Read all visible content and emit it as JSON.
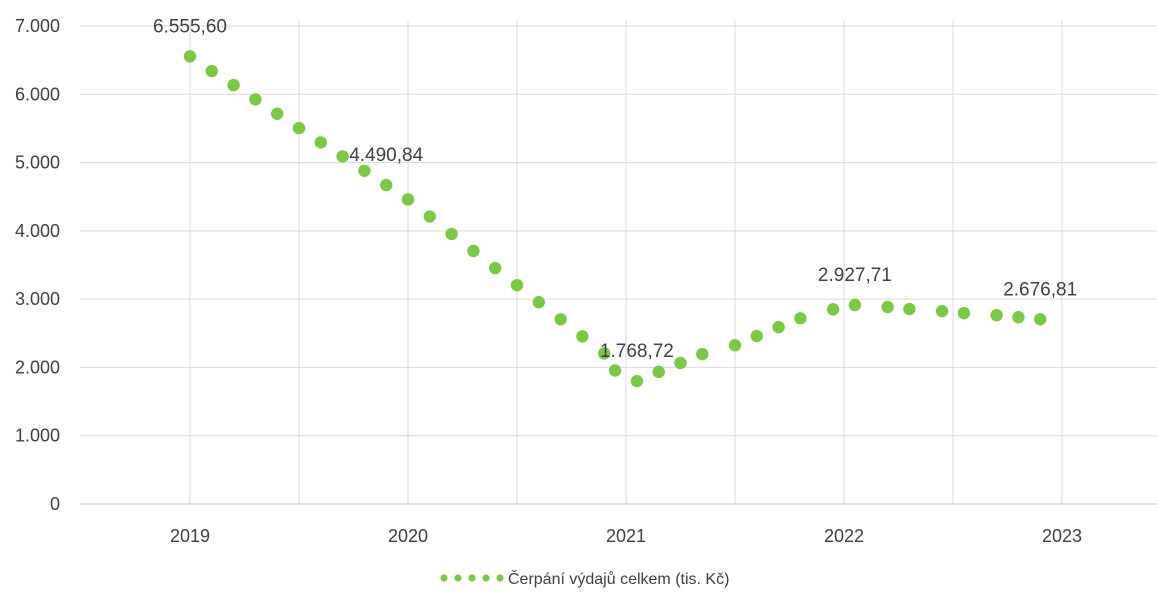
{
  "chart_data": {
    "type": "scatter",
    "title": "",
    "xlabel": "",
    "ylabel": "",
    "ylim": [
      0,
      7000
    ],
    "y_ticks": [
      {
        "value": 0,
        "label": "0"
      },
      {
        "value": 1000,
        "label": "1.000"
      },
      {
        "value": 2000,
        "label": "2.000"
      },
      {
        "value": 3000,
        "label": "3.000"
      },
      {
        "value": 4000,
        "label": "4.000"
      },
      {
        "value": 5000,
        "label": "5.000"
      },
      {
        "value": 6000,
        "label": "6.000"
      },
      {
        "value": 7000,
        "label": "7.000"
      }
    ],
    "x_ticks": [
      {
        "value": 2019,
        "label": "2019"
      },
      {
        "value": 2020,
        "label": "2020"
      },
      {
        "value": 2021,
        "label": "2021"
      },
      {
        "value": 2022,
        "label": "2022"
      },
      {
        "value": 2023,
        "label": "2023"
      }
    ],
    "xlim": [
      2018.5,
      2023.5
    ],
    "grid": {
      "horizontal": true,
      "vertical": true,
      "vertical_step": 0.5
    },
    "legend_position": "bottom-center",
    "series": [
      {
        "name": "Čerpání výdajů celkem (tis. Kč)",
        "color": "#7ac943",
        "points": [
          {
            "x": 2019.0,
            "y": 6555.6,
            "label": "6.555,60"
          },
          {
            "x": 2019.1,
            "y": 6340
          },
          {
            "x": 2019.2,
            "y": 6135
          },
          {
            "x": 2019.3,
            "y": 5925
          },
          {
            "x": 2019.4,
            "y": 5715
          },
          {
            "x": 2019.5,
            "y": 5505
          },
          {
            "x": 2019.6,
            "y": 5295
          },
          {
            "x": 2019.7,
            "y": 5090
          },
          {
            "x": 2019.8,
            "y": 4880
          },
          {
            "x": 2019.9,
            "y": 4670,
            "label": "4.490,84"
          },
          {
            "x": 2020.0,
            "y": 4460
          },
          {
            "x": 2020.1,
            "y": 4210
          },
          {
            "x": 2020.2,
            "y": 3955
          },
          {
            "x": 2020.3,
            "y": 3705
          },
          {
            "x": 2020.4,
            "y": 3455
          },
          {
            "x": 2020.5,
            "y": 3205
          },
          {
            "x": 2020.6,
            "y": 2955
          },
          {
            "x": 2020.7,
            "y": 2705
          },
          {
            "x": 2020.8,
            "y": 2455
          },
          {
            "x": 2020.9,
            "y": 2205
          },
          {
            "x": 2020.95,
            "y": 1955
          },
          {
            "x": 2021.05,
            "y": 1800,
            "label": "1.768,72"
          },
          {
            "x": 2021.15,
            "y": 1935
          },
          {
            "x": 2021.25,
            "y": 2065
          },
          {
            "x": 2021.35,
            "y": 2195
          },
          {
            "x": 2021.5,
            "y": 2325
          },
          {
            "x": 2021.6,
            "y": 2460
          },
          {
            "x": 2021.7,
            "y": 2590
          },
          {
            "x": 2021.8,
            "y": 2720
          },
          {
            "x": 2021.95,
            "y": 2850
          },
          {
            "x": 2022.05,
            "y": 2915,
            "label": "2.927,71"
          },
          {
            "x": 2022.2,
            "y": 2885
          },
          {
            "x": 2022.3,
            "y": 2855
          },
          {
            "x": 2022.45,
            "y": 2825
          },
          {
            "x": 2022.55,
            "y": 2795
          },
          {
            "x": 2022.7,
            "y": 2765
          },
          {
            "x": 2022.8,
            "y": 2735
          },
          {
            "x": 2022.9,
            "y": 2705,
            "label": "2.676,81"
          }
        ]
      }
    ]
  }
}
